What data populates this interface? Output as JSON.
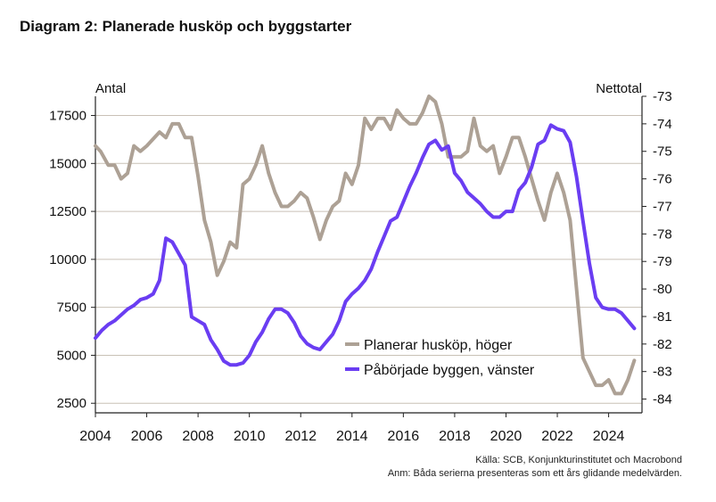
{
  "title": "Diagram 2: Planerade husköp och byggstarter",
  "source": "Källa: SCB, Konjunkturinstitutet och Macrobond",
  "note": "Anm: Båda serierna presenteras som ett års glidande medelvärden.",
  "chart_data": {
    "type": "line",
    "left_axis_label": "Antal",
    "right_axis_label": "Nettotal",
    "x_ticks": [
      "2004",
      "2006",
      "2008",
      "2010",
      "2012",
      "2014",
      "2016",
      "2018",
      "2020",
      "2022",
      "2024"
    ],
    "x_range": [
      2004,
      2025.3
    ],
    "left_ylim": [
      2000,
      18500
    ],
    "left_ticks": [
      2500,
      5000,
      7500,
      10000,
      12500,
      15000,
      17500
    ],
    "left_tick_labels": [
      "2500",
      "5000",
      "7500",
      "10000",
      "12500",
      "15000",
      "17500"
    ],
    "right_ylim": [
      -84.5,
      -73
    ],
    "right_ticks": [
      -84,
      -83,
      -82,
      -81,
      -80,
      -79,
      -78,
      -77,
      -76,
      -75,
      -74,
      -73
    ],
    "right_tick_labels": [
      "-84",
      "-83",
      "-82",
      "-81",
      "-80",
      "-79",
      "-78",
      "-77",
      "-76",
      "-75",
      "-74",
      "-73"
    ],
    "legend_position": "center-right",
    "series": [
      {
        "name": "Planerar husköp, höger",
        "axis": "right",
        "color": "#ada195",
        "points": [
          [
            2004.0,
            -74.8
          ],
          [
            2004.2,
            -75.0
          ],
          [
            2004.5,
            -75.5
          ],
          [
            2004.75,
            -75.5
          ],
          [
            2005.0,
            -76.0
          ],
          [
            2005.25,
            -75.8
          ],
          [
            2005.5,
            -74.8
          ],
          [
            2005.75,
            -75.0
          ],
          [
            2006.0,
            -74.8
          ],
          [
            2006.5,
            -74.3
          ],
          [
            2006.75,
            -74.5
          ],
          [
            2007.0,
            -74.0
          ],
          [
            2007.25,
            -74.0
          ],
          [
            2007.5,
            -74.5
          ],
          [
            2007.75,
            -74.5
          ],
          [
            2008.0,
            -75.9
          ],
          [
            2008.25,
            -77.5
          ],
          [
            2008.5,
            -78.3
          ],
          [
            2008.75,
            -79.5
          ],
          [
            2009.0,
            -79.0
          ],
          [
            2009.25,
            -78.3
          ],
          [
            2009.5,
            -78.5
          ],
          [
            2009.75,
            -76.2
          ],
          [
            2010.0,
            -76.0
          ],
          [
            2010.25,
            -75.5
          ],
          [
            2010.5,
            -74.8
          ],
          [
            2010.75,
            -75.8
          ],
          [
            2011.0,
            -76.5
          ],
          [
            2011.25,
            -77.0
          ],
          [
            2011.5,
            -77.0
          ],
          [
            2011.75,
            -76.8
          ],
          [
            2012.0,
            -76.5
          ],
          [
            2012.25,
            -76.7
          ],
          [
            2012.5,
            -77.4
          ],
          [
            2012.75,
            -78.2
          ],
          [
            2013.0,
            -77.5
          ],
          [
            2013.25,
            -77.0
          ],
          [
            2013.5,
            -76.8
          ],
          [
            2013.75,
            -75.8
          ],
          [
            2014.0,
            -76.2
          ],
          [
            2014.25,
            -75.5
          ],
          [
            2014.5,
            -73.8
          ],
          [
            2014.75,
            -74.2
          ],
          [
            2015.0,
            -73.8
          ],
          [
            2015.25,
            -73.8
          ],
          [
            2015.5,
            -74.2
          ],
          [
            2015.75,
            -73.5
          ],
          [
            2016.0,
            -73.8
          ],
          [
            2016.25,
            -74.0
          ],
          [
            2016.5,
            -74.0
          ],
          [
            2016.75,
            -73.6
          ],
          [
            2017.0,
            -73.0
          ],
          [
            2017.25,
            -73.2
          ],
          [
            2017.5,
            -74.0
          ],
          [
            2017.75,
            -75.2
          ],
          [
            2018.0,
            -75.2
          ],
          [
            2018.25,
            -75.2
          ],
          [
            2018.5,
            -75.0
          ],
          [
            2018.75,
            -73.8
          ],
          [
            2019.0,
            -74.8
          ],
          [
            2019.25,
            -75.0
          ],
          [
            2019.5,
            -74.8
          ],
          [
            2019.75,
            -75.8
          ],
          [
            2020.0,
            -75.2
          ],
          [
            2020.25,
            -74.5
          ],
          [
            2020.5,
            -74.5
          ],
          [
            2020.75,
            -75.2
          ],
          [
            2021.0,
            -76.0
          ],
          [
            2021.25,
            -76.8
          ],
          [
            2021.5,
            -77.5
          ],
          [
            2021.75,
            -76.5
          ],
          [
            2022.0,
            -75.8
          ],
          [
            2022.25,
            -76.5
          ],
          [
            2022.5,
            -77.5
          ],
          [
            2022.75,
            -80.0
          ],
          [
            2023.0,
            -82.5
          ],
          [
            2023.25,
            -83.0
          ],
          [
            2023.5,
            -83.5
          ],
          [
            2023.75,
            -83.5
          ],
          [
            2024.0,
            -83.3
          ],
          [
            2024.25,
            -83.8
          ],
          [
            2024.5,
            -83.8
          ],
          [
            2024.75,
            -83.3
          ],
          [
            2025.0,
            -82.6
          ]
        ]
      },
      {
        "name": "Påbörjade byggen, vänster",
        "axis": "left",
        "color": "#6a3df2",
        "points": [
          [
            2004.0,
            5900
          ],
          [
            2004.25,
            6300
          ],
          [
            2004.5,
            6600
          ],
          [
            2004.75,
            6800
          ],
          [
            2005.0,
            7100
          ],
          [
            2005.25,
            7400
          ],
          [
            2005.5,
            7600
          ],
          [
            2005.75,
            7900
          ],
          [
            2006.0,
            8000
          ],
          [
            2006.25,
            8200
          ],
          [
            2006.5,
            8900
          ],
          [
            2006.75,
            11100
          ],
          [
            2007.0,
            10900
          ],
          [
            2007.25,
            10300
          ],
          [
            2007.5,
            9700
          ],
          [
            2007.75,
            7000
          ],
          [
            2008.0,
            6800
          ],
          [
            2008.25,
            6600
          ],
          [
            2008.5,
            5800
          ],
          [
            2008.75,
            5300
          ],
          [
            2009.0,
            4700
          ],
          [
            2009.25,
            4500
          ],
          [
            2009.5,
            4500
          ],
          [
            2009.75,
            4600
          ],
          [
            2010.0,
            5000
          ],
          [
            2010.25,
            5700
          ],
          [
            2010.5,
            6200
          ],
          [
            2010.75,
            6900
          ],
          [
            2011.0,
            7400
          ],
          [
            2011.25,
            7400
          ],
          [
            2011.5,
            7200
          ],
          [
            2011.75,
            6700
          ],
          [
            2012.0,
            6000
          ],
          [
            2012.25,
            5600
          ],
          [
            2012.5,
            5400
          ],
          [
            2012.75,
            5300
          ],
          [
            2013.0,
            5700
          ],
          [
            2013.25,
            6100
          ],
          [
            2013.5,
            6800
          ],
          [
            2013.75,
            7800
          ],
          [
            2014.0,
            8200
          ],
          [
            2014.25,
            8500
          ],
          [
            2014.5,
            8900
          ],
          [
            2014.75,
            9500
          ],
          [
            2015.0,
            10400
          ],
          [
            2015.25,
            11200
          ],
          [
            2015.5,
            12000
          ],
          [
            2015.75,
            12200
          ],
          [
            2016.0,
            13000
          ],
          [
            2016.25,
            13800
          ],
          [
            2016.5,
            14500
          ],
          [
            2016.75,
            15300
          ],
          [
            2017.0,
            16000
          ],
          [
            2017.25,
            16200
          ],
          [
            2017.5,
            15700
          ],
          [
            2017.75,
            15900
          ],
          [
            2018.0,
            14500
          ],
          [
            2018.25,
            14100
          ],
          [
            2018.5,
            13500
          ],
          [
            2018.75,
            13200
          ],
          [
            2019.0,
            12900
          ],
          [
            2019.25,
            12500
          ],
          [
            2019.5,
            12200
          ],
          [
            2019.75,
            12200
          ],
          [
            2020.0,
            12500
          ],
          [
            2020.25,
            12500
          ],
          [
            2020.5,
            13600
          ],
          [
            2020.75,
            14000
          ],
          [
            2021.0,
            14800
          ],
          [
            2021.25,
            16000
          ],
          [
            2021.5,
            16200
          ],
          [
            2021.75,
            17000
          ],
          [
            2022.0,
            16800
          ],
          [
            2022.25,
            16700
          ],
          [
            2022.5,
            16100
          ],
          [
            2022.75,
            14300
          ],
          [
            2023.0,
            12000
          ],
          [
            2023.25,
            9800
          ],
          [
            2023.5,
            8000
          ],
          [
            2023.75,
            7500
          ],
          [
            2024.0,
            7400
          ],
          [
            2024.25,
            7400
          ],
          [
            2024.5,
            7200
          ],
          [
            2024.75,
            6800
          ],
          [
            2025.0,
            6400
          ]
        ]
      }
    ]
  }
}
